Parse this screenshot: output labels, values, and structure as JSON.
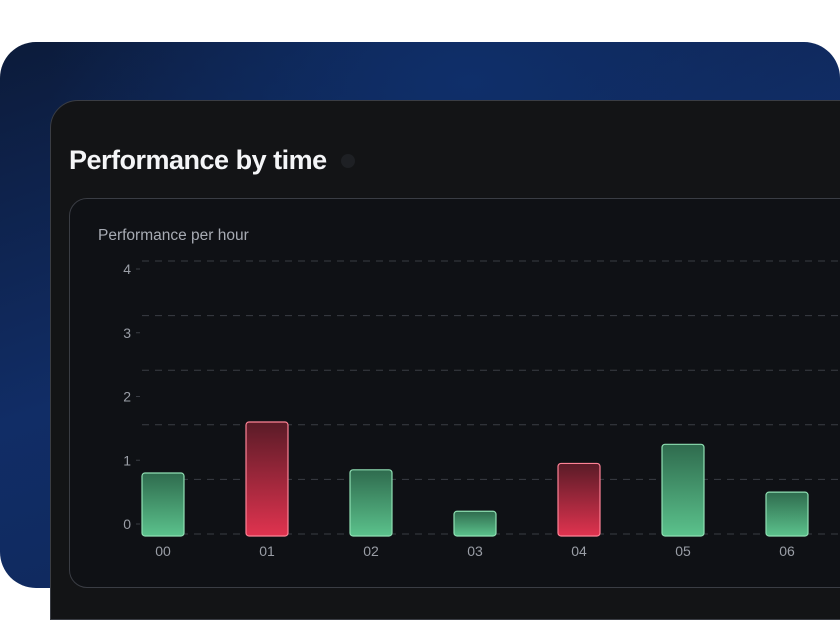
{
  "page": {
    "title": "Performance by time"
  },
  "card": {
    "title": "Performance per hour"
  },
  "colors": {
    "positive_top": "#2f6b4e",
    "positive_bottom": "#5bc28c",
    "positive_border": "#8fe0b3",
    "negative_top": "#5a1b27",
    "negative_bottom": "#e0334f",
    "negative_border": "#ff8296",
    "grid": "#3a3d44",
    "tick_text": "#9a9ea6"
  },
  "chart_data": {
    "type": "bar",
    "title": "Performance per hour",
    "categories": [
      "00",
      "01",
      "02",
      "03",
      "04",
      "05",
      "06"
    ],
    "values": [
      0.8,
      1.6,
      0.85,
      0.2,
      0.95,
      1.25,
      0.5
    ],
    "bar_colors": [
      "positive",
      "negative",
      "positive",
      "positive",
      "negative",
      "positive",
      "positive"
    ],
    "yticks": [
      "0",
      "1",
      "2",
      "3",
      "4"
    ],
    "ylim": [
      0,
      4
    ],
    "grid": true
  }
}
